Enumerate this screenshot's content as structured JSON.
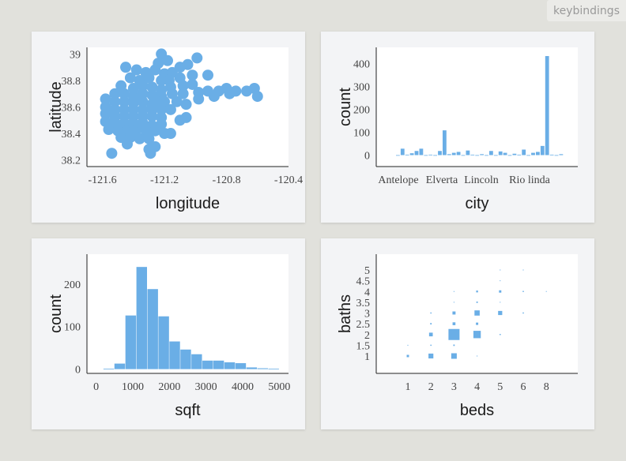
{
  "toolbar": {
    "keybindings_label": "keybindings"
  },
  "colors": {
    "mark": "#6aaee6",
    "axis": "#222222",
    "plot_bg": "#ffffff",
    "panel_bg": "#f3f4f6"
  },
  "chart_data": [
    {
      "type": "scatter",
      "xlabel": "longitude",
      "ylabel": "latitude",
      "xlim": [
        -121.7,
        -120.4
      ],
      "ylim": [
        38.15,
        39.05
      ],
      "xticks": [
        -121.6,
        -121.2,
        -120.8,
        -120.4
      ],
      "xtick_labels": [
        "-121.6",
        "-121.2",
        "-120.8",
        "-120.4"
      ],
      "yticks": [
        38.2,
        38.4,
        38.6,
        38.8,
        39.0
      ],
      "ytick_labels": [
        "38.2",
        "38.4",
        "38.6",
        "38.8",
        "39"
      ],
      "points": [
        [
          -121.22,
          39.0
        ],
        [
          -121.24,
          38.93
        ],
        [
          -121.18,
          38.95
        ],
        [
          -121.05,
          38.92
        ],
        [
          -121.1,
          38.9
        ],
        [
          -120.99,
          38.97
        ],
        [
          -121.45,
          38.9
        ],
        [
          -121.38,
          38.88
        ],
        [
          -121.32,
          38.86
        ],
        [
          -121.26,
          38.88
        ],
        [
          -121.2,
          38.85
        ],
        [
          -121.15,
          38.86
        ],
        [
          -121.42,
          38.82
        ],
        [
          -121.36,
          38.8
        ],
        [
          -121.3,
          38.82
        ],
        [
          -121.22,
          38.8
        ],
        [
          -121.17,
          38.8
        ],
        [
          -121.1,
          38.82
        ],
        [
          -121.02,
          38.84
        ],
        [
          -120.92,
          38.84
        ],
        [
          -121.48,
          38.76
        ],
        [
          -121.4,
          38.74
        ],
        [
          -121.34,
          38.76
        ],
        [
          -121.28,
          38.75
        ],
        [
          -121.22,
          38.73
        ],
        [
          -121.16,
          38.75
        ],
        [
          -121.08,
          38.76
        ],
        [
          -121.02,
          38.77
        ],
        [
          -121.52,
          38.7
        ],
        [
          -121.46,
          38.7
        ],
        [
          -121.4,
          38.68
        ],
        [
          -121.34,
          38.7
        ],
        [
          -121.28,
          38.69
        ],
        [
          -121.22,
          38.68
        ],
        [
          -121.15,
          38.7
        ],
        [
          -121.08,
          38.7
        ],
        [
          -120.98,
          38.71
        ],
        [
          -120.92,
          38.72
        ],
        [
          -120.85,
          38.72
        ],
        [
          -120.8,
          38.74
        ],
        [
          -120.74,
          38.72
        ],
        [
          -120.67,
          38.72
        ],
        [
          -120.62,
          38.74
        ],
        [
          -120.6,
          38.68
        ],
        [
          -120.78,
          38.7
        ],
        [
          -121.58,
          38.66
        ],
        [
          -121.52,
          38.64
        ],
        [
          -121.46,
          38.64
        ],
        [
          -121.4,
          38.63
        ],
        [
          -121.34,
          38.64
        ],
        [
          -121.28,
          38.62
        ],
        [
          -121.2,
          38.64
        ],
        [
          -121.12,
          38.64
        ],
        [
          -121.06,
          38.62
        ],
        [
          -120.98,
          38.66
        ],
        [
          -120.88,
          38.68
        ],
        [
          -121.58,
          38.6
        ],
        [
          -121.52,
          38.58
        ],
        [
          -121.46,
          38.58
        ],
        [
          -121.4,
          38.58
        ],
        [
          -121.34,
          38.58
        ],
        [
          -121.28,
          38.58
        ],
        [
          -121.22,
          38.58
        ],
        [
          -121.16,
          38.58
        ],
        [
          -121.58,
          38.55
        ],
        [
          -121.52,
          38.53
        ],
        [
          -121.46,
          38.53
        ],
        [
          -121.4,
          38.53
        ],
        [
          -121.34,
          38.53
        ],
        [
          -121.28,
          38.53
        ],
        [
          -121.22,
          38.52
        ],
        [
          -121.1,
          38.5
        ],
        [
          -121.06,
          38.52
        ],
        [
          -121.58,
          38.49
        ],
        [
          -121.52,
          38.48
        ],
        [
          -121.46,
          38.48
        ],
        [
          -121.4,
          38.48
        ],
        [
          -121.34,
          38.48
        ],
        [
          -121.28,
          38.46
        ],
        [
          -121.22,
          38.47
        ],
        [
          -121.56,
          38.43
        ],
        [
          -121.5,
          38.42
        ],
        [
          -121.44,
          38.42
        ],
        [
          -121.38,
          38.43
        ],
        [
          -121.32,
          38.42
        ],
        [
          -121.26,
          38.42
        ],
        [
          -121.2,
          38.4
        ],
        [
          -121.16,
          38.4
        ],
        [
          -121.48,
          38.37
        ],
        [
          -121.42,
          38.37
        ],
        [
          -121.36,
          38.36
        ],
        [
          -121.3,
          38.36
        ],
        [
          -121.44,
          38.32
        ],
        [
          -121.26,
          38.3
        ],
        [
          -121.29,
          38.25
        ],
        [
          -121.3,
          38.28
        ],
        [
          -121.54,
          38.25
        ],
        [
          -121.4,
          38.42
        ],
        [
          -121.35,
          38.68
        ],
        [
          -121.25,
          38.64
        ]
      ]
    },
    {
      "type": "bar",
      "xlabel": "city",
      "ylabel": "count",
      "ylim": [
        -50,
        470
      ],
      "yticks": [
        0,
        100,
        200,
        300,
        400
      ],
      "ytick_labels": [
        "0",
        "100",
        "200",
        "300",
        "400"
      ],
      "xtick_labels": [
        "Antelope",
        "Elverta",
        "Lincoln",
        "Rio linda"
      ],
      "xtick_indices": [
        3,
        10,
        17,
        24
      ],
      "values": [
        0,
        28,
        2,
        8,
        18,
        28,
        0,
        2,
        0,
        18,
        108,
        4,
        10,
        14,
        0,
        20,
        2,
        0,
        4,
        0,
        18,
        0,
        16,
        10,
        0,
        6,
        2,
        24,
        0,
        10,
        14,
        40,
        432,
        2,
        0,
        4
      ]
    },
    {
      "type": "bar",
      "subtype": "histogram",
      "xlabel": "sqft",
      "ylabel": "count",
      "xlim": [
        -250,
        5250
      ],
      "ylim": [
        -10,
        270
      ],
      "xticks": [
        0,
        1000,
        2000,
        3000,
        4000,
        5000
      ],
      "xtick_labels": [
        "0",
        "1000",
        "2000",
        "3000",
        "4000",
        "5000"
      ],
      "yticks": [
        0,
        100,
        200
      ],
      "ytick_labels": [
        "0",
        "100",
        "200"
      ],
      "bin_edges": [
        200,
        500,
        800,
        1100,
        1400,
        1700,
        2000,
        2300,
        2600,
        2900,
        3200,
        3500,
        3800,
        4100,
        4400,
        4700,
        5000
      ],
      "values": [
        1,
        13,
        126,
        240,
        188,
        124,
        65,
        46,
        35,
        20,
        20,
        16,
        14,
        4,
        2,
        1
      ]
    },
    {
      "type": "scatter",
      "subtype": "binned-squares",
      "xlabel": "beds",
      "ylabel": "baths",
      "xticks": [
        1,
        2,
        3,
        4,
        5,
        6,
        8
      ],
      "xtick_labels": [
        "1",
        "2",
        "3",
        "4",
        "5",
        "6",
        "8"
      ],
      "yticks": [
        1,
        1.5,
        2,
        2.5,
        3,
        3.5,
        4,
        4.5,
        5
      ],
      "ytick_labels": [
        "1",
        "1.5",
        "2",
        "2.5",
        "3",
        "3.5",
        "4",
        "4.5",
        "5"
      ],
      "cells": [
        {
          "beds": "1",
          "baths": 1,
          "count": 8
        },
        {
          "beds": "1",
          "baths": 1.5,
          "count": 1
        },
        {
          "beds": "2",
          "baths": 1,
          "count": 35
        },
        {
          "beds": "2",
          "baths": 1.5,
          "count": 2
        },
        {
          "beds": "2",
          "baths": 2,
          "count": 20
        },
        {
          "beds": "2",
          "baths": 2.5,
          "count": 3
        },
        {
          "beds": "2",
          "baths": 3,
          "count": 2
        },
        {
          "beds": "3",
          "baths": 1,
          "count": 45
        },
        {
          "beds": "3",
          "baths": 1.5,
          "count": 3
        },
        {
          "beds": "3",
          "baths": 2,
          "count": 180
        },
        {
          "beds": "3",
          "baths": 2.5,
          "count": 12
        },
        {
          "beds": "3",
          "baths": 3,
          "count": 14
        },
        {
          "beds": "3",
          "baths": 3.5,
          "count": 1
        },
        {
          "beds": "3",
          "baths": 4,
          "count": 1
        },
        {
          "beds": "4",
          "baths": 1,
          "count": 1
        },
        {
          "beds": "4",
          "baths": 2,
          "count": 80
        },
        {
          "beds": "4",
          "baths": 2.5,
          "count": 8
        },
        {
          "beds": "4",
          "baths": 3,
          "count": 40
        },
        {
          "beds": "4",
          "baths": 3.5,
          "count": 3
        },
        {
          "beds": "4",
          "baths": 4,
          "count": 5
        },
        {
          "beds": "5",
          "baths": 2,
          "count": 2
        },
        {
          "beds": "5",
          "baths": 3,
          "count": 25
        },
        {
          "beds": "5",
          "baths": 3.5,
          "count": 1
        },
        {
          "beds": "5",
          "baths": 4,
          "count": 8
        },
        {
          "beds": "5",
          "baths": 4.5,
          "count": 1
        },
        {
          "beds": "5",
          "baths": 5,
          "count": 1
        },
        {
          "beds": "6",
          "baths": 3,
          "count": 2
        },
        {
          "beds": "6",
          "baths": 4,
          "count": 2
        },
        {
          "beds": "6",
          "baths": 5,
          "count": 1
        },
        {
          "beds": "8",
          "baths": 4,
          "count": 1
        }
      ]
    }
  ]
}
